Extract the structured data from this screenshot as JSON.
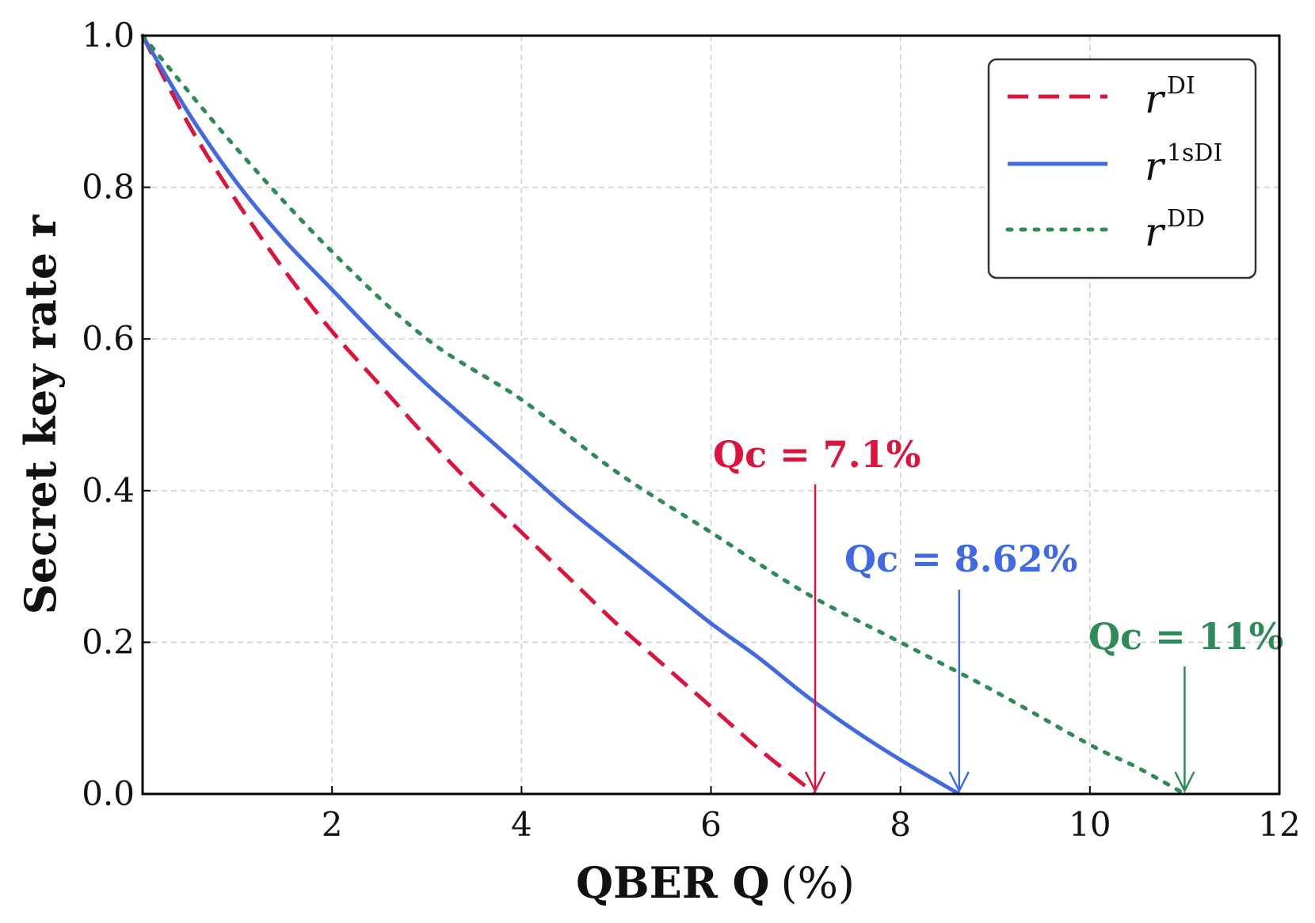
{
  "chart_data": {
    "type": "line",
    "xlabel": "QBER Q",
    "xlabel_unit": "(%)",
    "ylabel": "Secret key rate r",
    "xlim": [
      0,
      12
    ],
    "ylim": [
      0,
      1.0
    ],
    "xticks": [
      2,
      4,
      6,
      8,
      10,
      12
    ],
    "xtick_labels": [
      "2",
      "4",
      "6",
      "8",
      "10",
      "12"
    ],
    "yticks": [
      0.0,
      0.2,
      0.4,
      0.6,
      0.8,
      1.0
    ],
    "ytick_labels": [
      "0.0",
      "0.2",
      "0.4",
      "0.6",
      "0.8",
      "1.0"
    ],
    "grid": true,
    "legend_position": "top-right",
    "series": [
      {
        "name": "r^DI",
        "legend_base": "r",
        "legend_sup": "DI",
        "color": "#DC143C",
        "style": "dashed",
        "x": [
          0,
          0.5,
          1,
          1.5,
          2,
          2.5,
          3,
          3.5,
          4,
          4.5,
          5,
          5.5,
          6,
          6.5,
          7,
          7.1
        ],
        "y": [
          1.0,
          0.88,
          0.78,
          0.69,
          0.61,
          0.54,
          0.47,
          0.405,
          0.345,
          0.285,
          0.225,
          0.17,
          0.115,
          0.06,
          0.01,
          0.0
        ]
      },
      {
        "name": "r^1sDI",
        "legend_base": "r",
        "legend_sup": "1sDI",
        "color": "#4169E1",
        "style": "solid",
        "x": [
          0,
          0.5,
          1,
          1.5,
          2,
          2.5,
          3,
          3.5,
          4,
          4.5,
          5,
          5.5,
          6,
          6.5,
          7,
          7.5,
          8,
          8.62
        ],
        "y": [
          1.0,
          0.895,
          0.805,
          0.73,
          0.665,
          0.6,
          0.54,
          0.485,
          0.43,
          0.375,
          0.325,
          0.275,
          0.225,
          0.18,
          0.13,
          0.085,
          0.045,
          0.0
        ]
      },
      {
        "name": "r^DD",
        "legend_base": "r",
        "legend_sup": "DD",
        "color": "#2E8B57",
        "style": "dotted",
        "x": [
          0,
          1,
          2,
          3,
          4,
          5,
          6,
          7,
          8,
          9,
          10,
          10.5,
          11
        ],
        "y": [
          1.0,
          0.85,
          0.715,
          0.6,
          0.52,
          0.425,
          0.345,
          0.265,
          0.2,
          0.135,
          0.065,
          0.035,
          0.0
        ]
      }
    ],
    "annotations": [
      {
        "label": "Qc = 7.1%",
        "x": 7.1,
        "color": "#DC143C"
      },
      {
        "label": "Qc = 8.62%",
        "x": 8.62,
        "color": "#4169E1"
      },
      {
        "label": "Qc = 11%",
        "x": 11,
        "color": "#2E8B57"
      }
    ]
  }
}
